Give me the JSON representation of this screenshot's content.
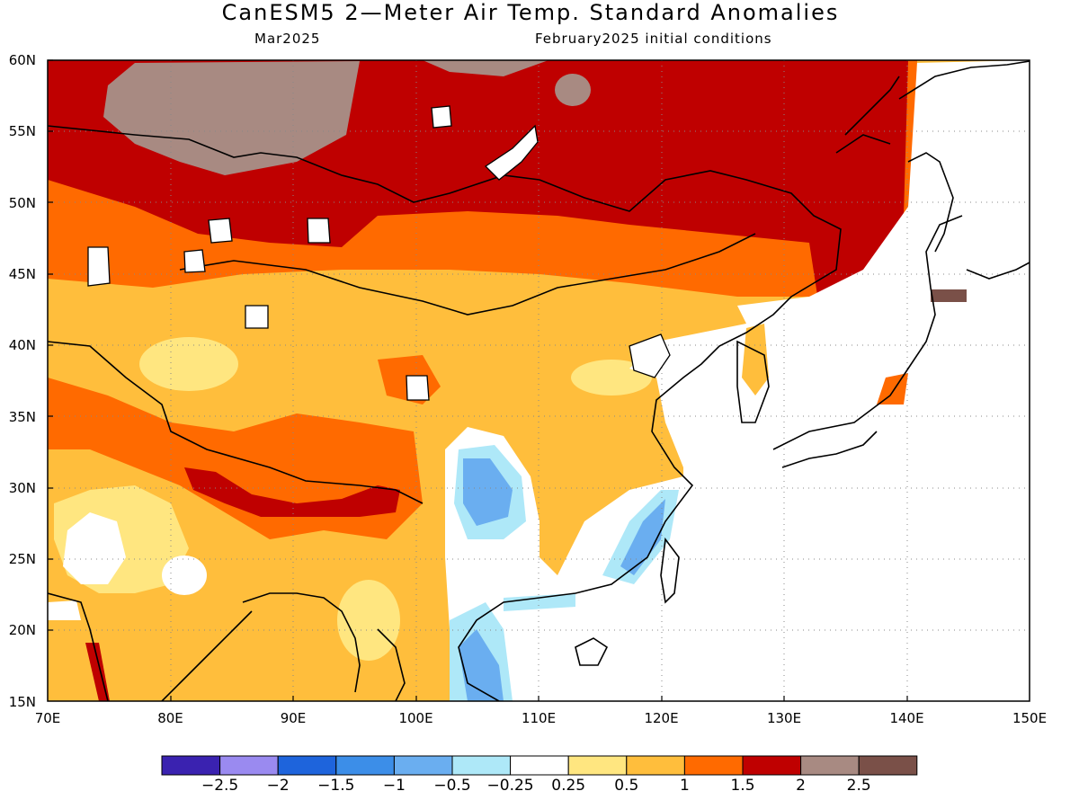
{
  "title": "CanESM5 2—Meter Air Temp. Standard Anomalies",
  "subtitle_left": "Mar2025",
  "subtitle_right": "February2025 initial conditions",
  "lat_labels": [
    "60N",
    "55N",
    "50N",
    "45N",
    "40N",
    "35N",
    "30N",
    "25N",
    "20N",
    "15N"
  ],
  "lon_labels": [
    "70E",
    "80E",
    "90E",
    "100E",
    "110E",
    "120E",
    "130E",
    "140E",
    "150E"
  ],
  "colorbar": {
    "colors": [
      "#3a22b0",
      "#9a8af0",
      "#1e64dc",
      "#3c8ee8",
      "#6aaef0",
      "#aee8f8",
      "#ffffff",
      "#ffe680",
      "#ffbe3c",
      "#ff6a00",
      "#bf0000",
      "#a88a82",
      "#7a5048"
    ],
    "labels": [
      "−2.5",
      "−2",
      "−1.5",
      "−1",
      "−0.5",
      "−0.25",
      "0.25",
      "0.5",
      "1",
      "1.5",
      "2",
      "2.5"
    ]
  }
}
